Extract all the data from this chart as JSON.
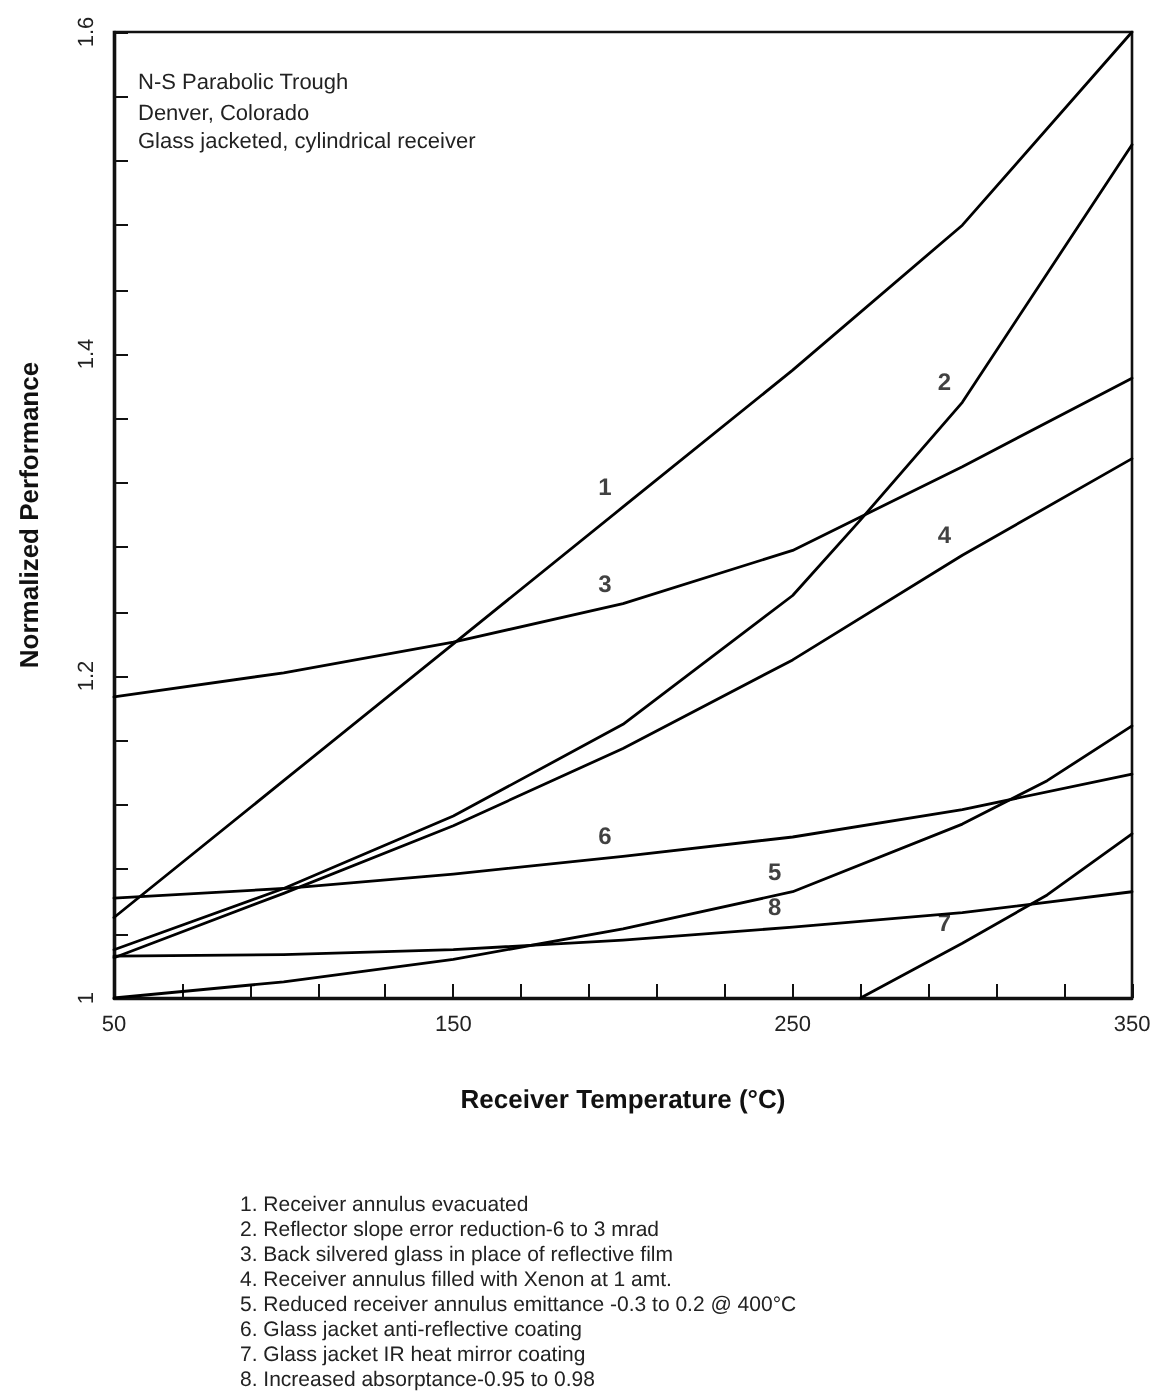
{
  "chart_data": {
    "type": "line",
    "title": "N-S Parabolic Trough",
    "subtitle": "Denver, Colorado\nGlass jacketed, cylindrical receiver",
    "xlabel": "Receiver Temperature (°C)",
    "ylabel": "Normalized Performance",
    "xlim": [
      50,
      350
    ],
    "ylim": [
      1,
      1.6
    ],
    "xticks": [
      50,
      {
        "value": 70,
        "label": null
      },
      {
        "value": 90,
        "label": null
      },
      {
        "value": 110,
        "label": null
      },
      {
        "value": 130,
        "label": null
      },
      150,
      {
        "value": 170,
        "label": null
      },
      {
        "value": 190,
        "label": null
      },
      {
        "value": 210,
        "label": null
      },
      {
        "value": 230,
        "label": null
      },
      250,
      {
        "value": 270,
        "label": null
      },
      {
        "value": 290,
        "label": null
      },
      {
        "value": 310,
        "label": null
      },
      {
        "value": 330,
        "label": null
      },
      350
    ],
    "yticks": [
      1,
      {
        "value": 1.04,
        "label": null
      },
      {
        "value": 1.08,
        "label": null
      },
      {
        "value": 1.12,
        "label": null
      },
      {
        "value": 1.16,
        "label": null
      },
      1.2,
      {
        "value": 1.24,
        "label": null
      },
      {
        "value": 1.28,
        "label": null
      },
      {
        "value": 1.32,
        "label": null
      },
      {
        "value": 1.36,
        "label": null
      },
      1.4,
      {
        "value": 1.44,
        "label": null
      },
      {
        "value": 1.48,
        "label": null
      },
      {
        "value": 1.52,
        "label": null
      },
      {
        "value": 1.56,
        "label": null
      },
      1.6
    ],
    "grid": false,
    "marker": "none",
    "line_style": "solid",
    "series": [
      {
        "color": "#000000",
        "x": [
          50,
          100,
          150,
          200,
          250,
          300,
          350
        ],
        "values": [
          1.05,
          1.135,
          1.22,
          1.305,
          1.39,
          1.48,
          1.6
        ]
      },
      {
        "color": "#000000",
        "x": [
          50,
          100,
          150,
          200,
          250,
          270,
          300,
          325,
          350
        ],
        "values": [
          1.03,
          1.068,
          1.113,
          1.17,
          1.25,
          1.297,
          1.37,
          1.45,
          1.53
        ]
      },
      {
        "color": "#000000",
        "x": [
          50,
          100,
          150,
          200,
          250,
          300,
          350
        ],
        "values": [
          1.187,
          1.202,
          1.221,
          1.245,
          1.278,
          1.33,
          1.385
        ]
      },
      {
        "color": "#000000",
        "x": [
          50,
          100,
          150,
          200,
          250,
          300,
          350
        ],
        "values": [
          1.025,
          1.065,
          1.107,
          1.155,
          1.21,
          1.275,
          1.335
        ]
      },
      {
        "color": "#000000",
        "x": [
          50,
          100,
          150,
          200,
          250,
          300,
          325,
          350
        ],
        "values": [
          1.0,
          1.01,
          1.024,
          1.043,
          1.066,
          1.108,
          1.135,
          1.169
        ]
      },
      {
        "color": "#000000",
        "x": [
          50,
          100,
          150,
          200,
          250,
          300,
          350
        ],
        "values": [
          1.062,
          1.068,
          1.077,
          1.088,
          1.1,
          1.117,
          1.139
        ]
      },
      {
        "color": "#000000",
        "x": [
          270,
          300,
          325,
          350
        ],
        "values": [
          1.0,
          1.034,
          1.064,
          1.102
        ]
      },
      {
        "color": "#000000",
        "x": [
          50,
          100,
          150,
          200,
          250,
          300,
          350
        ],
        "values": [
          1.026,
          1.027,
          1.03,
          1.036,
          1.044,
          1.053,
          1.066
        ]
      }
    ],
    "annotations": [
      {
        "text": "1",
        "x": 200,
        "y": 1.305
      },
      {
        "text": "2",
        "x": 300,
        "y": 1.37
      },
      {
        "text": "3",
        "x": 200,
        "y": 1.245
      },
      {
        "text": "4",
        "x": 300,
        "y": 1.275
      },
      {
        "text": "5",
        "x": 250,
        "y": 1.066
      },
      {
        "text": "6",
        "x": 200,
        "y": 1.088
      },
      {
        "text": "7",
        "x": 300,
        "y": 1.034
      },
      {
        "text": "8",
        "x": 250,
        "y": 1.044
      },
      "1. Receiver annulus evacuated",
      "2. Reflector slope error reduction-6 to 3 mrad",
      "3. Back silvered glass in place of reflective film",
      "4. Receiver annulus filled with Xenon at 1 amt.",
      "5. Reduced receiver annulus emittance -0.3 to 0.2 @ 400°C",
      "6. Glass jacket anti-reflective coating",
      "7. Glass jacket IR heat mirror coating",
      "8. Increased absorptance-0.95 to 0.98"
    ]
  }
}
